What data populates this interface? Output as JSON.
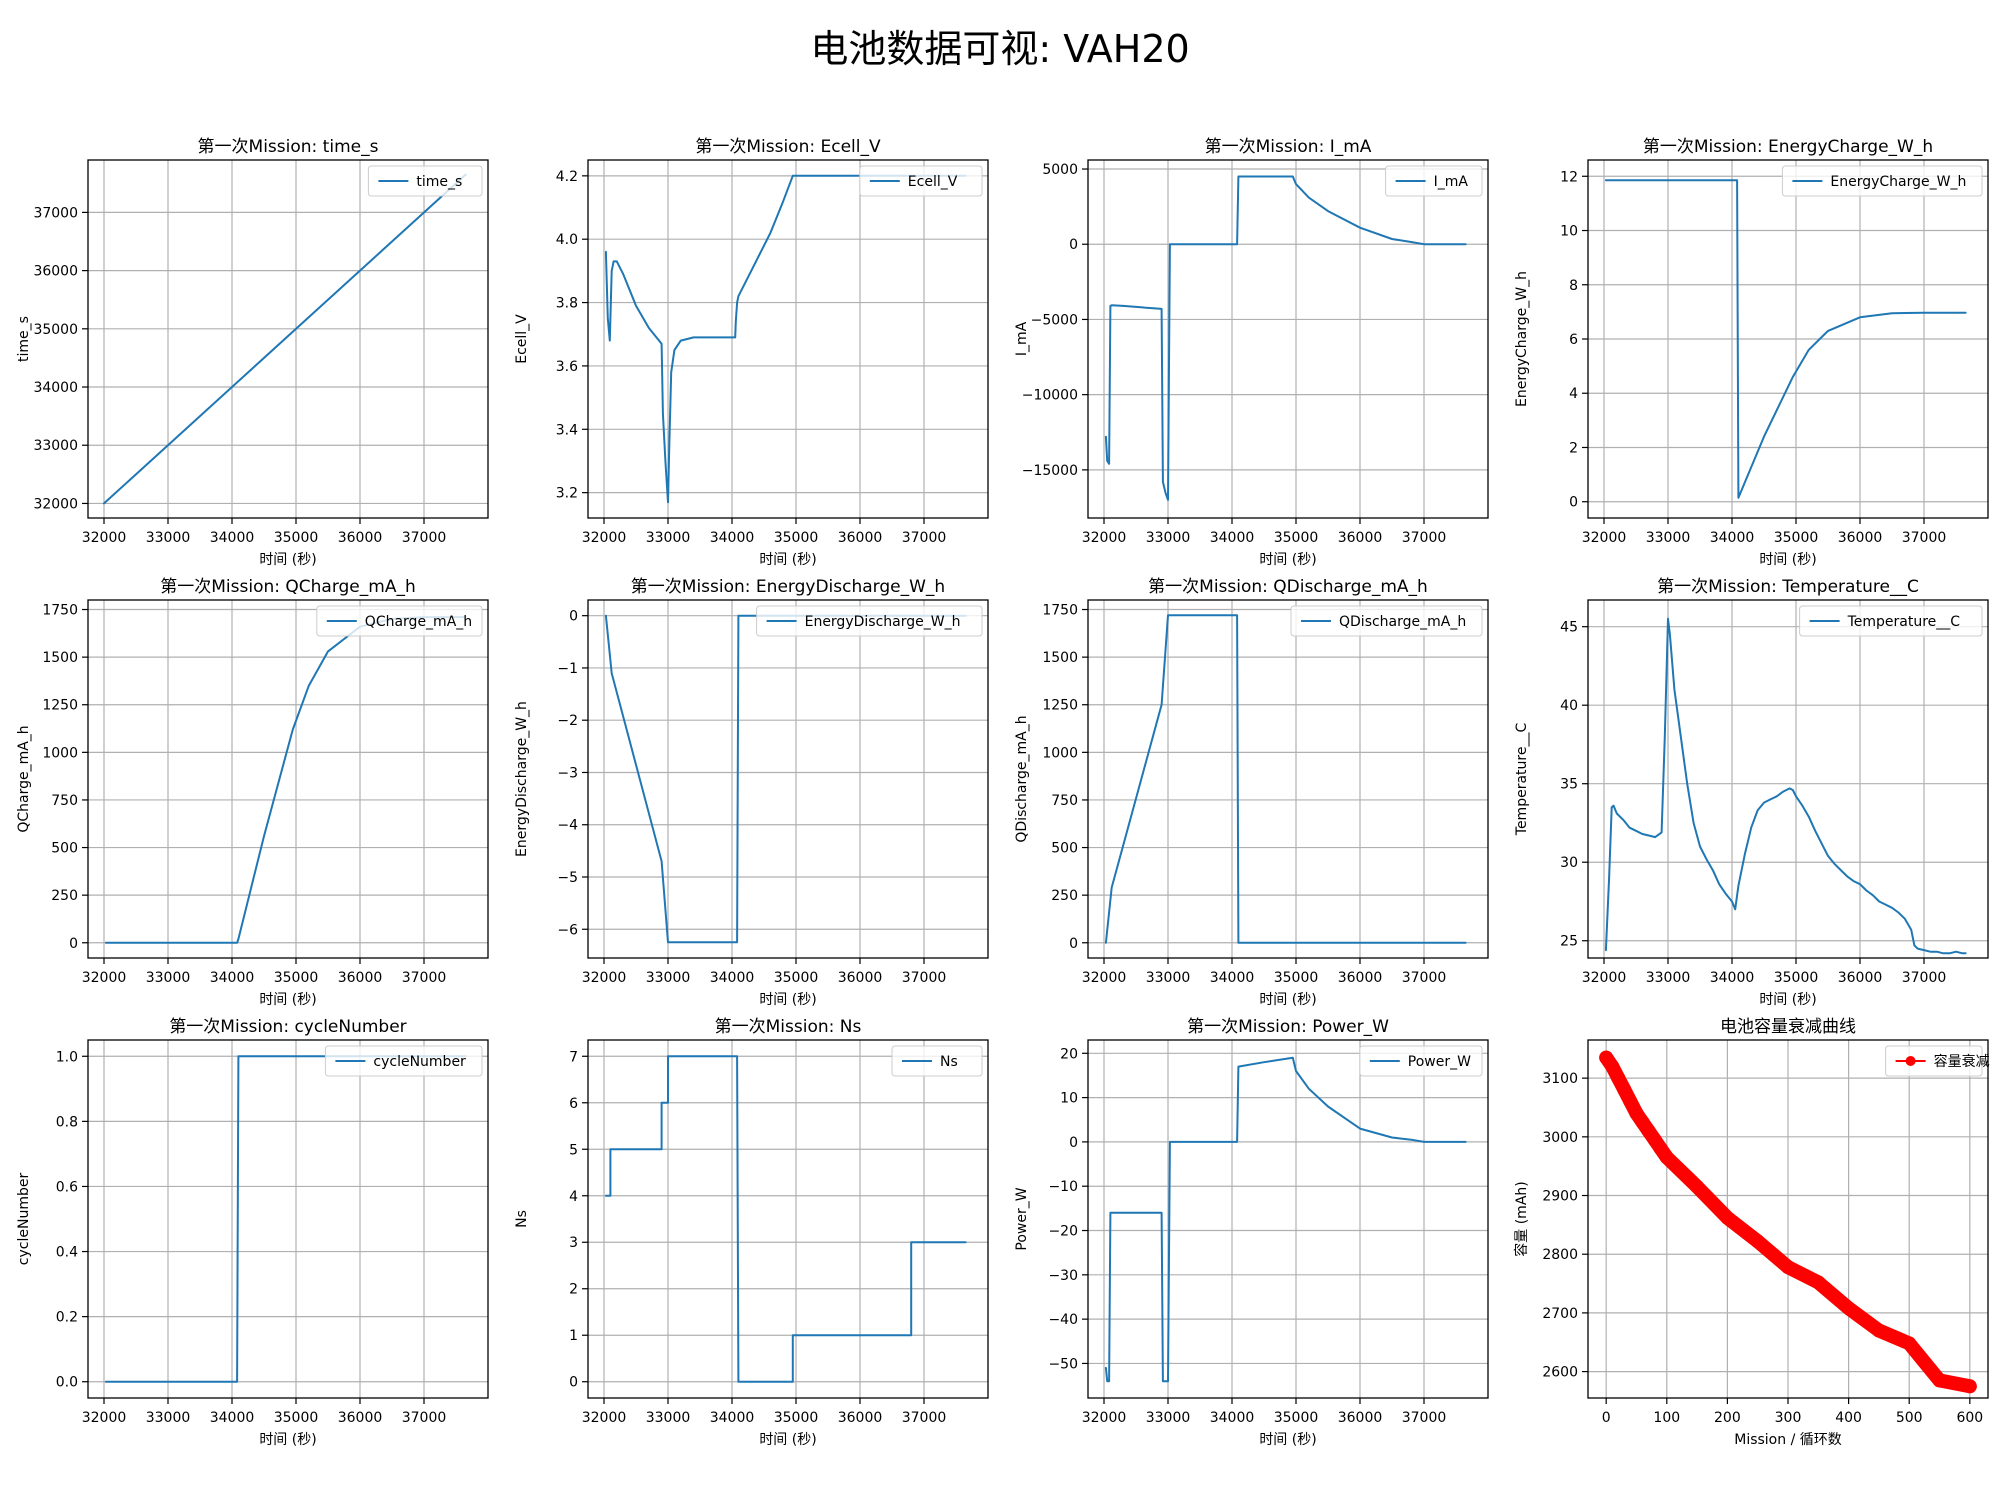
{
  "figure_title": "电池数据可视: VAH20",
  "chart_data": [
    {
      "type": "line",
      "title": "第一次Mission: time_s",
      "xlabel": "时间 (秒)",
      "ylabel": "time_s",
      "xlim": [
        31750,
        38000
      ],
      "ylim": [
        31750,
        37900
      ],
      "xticks": [
        32000,
        33000,
        34000,
        35000,
        36000,
        37000
      ],
      "yticks": [
        32000,
        33000,
        34000,
        35000,
        36000,
        37000
      ],
      "grid": true,
      "legend": "top-right",
      "series": [
        {
          "name": "time_s",
          "x": [
            32000,
            37650
          ],
          "y": [
            32000,
            37650
          ]
        }
      ]
    },
    {
      "type": "line",
      "title": "第一次Mission: Ecell_V",
      "xlabel": "时间 (秒)",
      "ylabel": "Ecell_V",
      "xlim": [
        31750,
        38000
      ],
      "ylim": [
        3.12,
        4.25
      ],
      "xticks": [
        32000,
        33000,
        34000,
        35000,
        36000,
        37000
      ],
      "yticks": [
        3.2,
        3.4,
        3.6,
        3.8,
        4.0,
        4.2
      ],
      "yticklabels": [
        "3.2",
        "3.4",
        "3.6",
        "3.8",
        "4.0",
        "4.2"
      ],
      "grid": true,
      "legend": "top-right",
      "series": [
        {
          "name": "Ecell_V",
          "x": [
            32030,
            32060,
            32090,
            32120,
            32150,
            32200,
            32300,
            32500,
            32700,
            32900,
            32920,
            32960,
            33000,
            33020,
            33050,
            33100,
            33200,
            33400,
            33700,
            34050,
            34060,
            34080,
            34100,
            34300,
            34600,
            34800,
            34950,
            35200,
            35600,
            36000,
            36500,
            37000,
            37650
          ],
          "y": [
            3.96,
            3.75,
            3.68,
            3.9,
            3.93,
            3.93,
            3.89,
            3.79,
            3.72,
            3.67,
            3.45,
            3.3,
            3.17,
            3.35,
            3.58,
            3.65,
            3.68,
            3.69,
            3.69,
            3.69,
            3.74,
            3.8,
            3.82,
            3.9,
            4.02,
            4.12,
            4.2,
            4.2,
            4.2,
            4.2,
            4.2,
            4.2,
            4.2
          ]
        }
      ]
    },
    {
      "type": "line",
      "title": "第一次Mission: I_mA",
      "xlabel": "时间 (秒)",
      "ylabel": "I_mA",
      "xlim": [
        31750,
        38000
      ],
      "ylim": [
        -18200,
        5600
      ],
      "xticks": [
        32000,
        33000,
        34000,
        35000,
        36000,
        37000
      ],
      "yticks": [
        -15000,
        -10000,
        -5000,
        0,
        5000
      ],
      "grid": true,
      "legend": "top-right",
      "series": [
        {
          "name": "I_mA",
          "x": [
            32030,
            32050,
            32080,
            32100,
            32120,
            32300,
            32600,
            32900,
            32920,
            32960,
            33000,
            33030,
            33200,
            33500,
            34000,
            34080,
            34100,
            34500,
            34950,
            35000,
            35200,
            35500,
            36000,
            36500,
            36800,
            37000,
            37650
          ],
          "y": [
            -12800,
            -14400,
            -14600,
            -4100,
            -4050,
            -4100,
            -4200,
            -4300,
            -15800,
            -16500,
            -17000,
            0,
            0,
            0,
            0,
            0,
            4500,
            4500,
            4500,
            4000,
            3100,
            2200,
            1100,
            350,
            150,
            0,
            0
          ]
        }
      ]
    },
    {
      "type": "line",
      "title": "第一次Mission: EnergyCharge_W_h",
      "xlabel": "时间 (秒)",
      "ylabel": "EnergyCharge_W_h",
      "xlim": [
        31750,
        38000
      ],
      "ylim": [
        -0.6,
        12.6
      ],
      "xticks": [
        32000,
        33000,
        34000,
        35000,
        36000,
        37000
      ],
      "yticks": [
        0,
        2,
        4,
        6,
        8,
        10,
        12
      ],
      "grid": true,
      "legend": "top-right",
      "series": [
        {
          "name": "EnergyCharge_W_h",
          "x": [
            32030,
            33000,
            34000,
            34080,
            34100,
            34500,
            34950,
            35200,
            35500,
            36000,
            36500,
            37000,
            37650
          ],
          "y": [
            11.85,
            11.85,
            11.85,
            11.85,
            0.15,
            2.4,
            4.6,
            5.6,
            6.3,
            6.8,
            6.95,
            6.97,
            6.97
          ]
        }
      ]
    },
    {
      "type": "line",
      "title": "第一次Mission: QCharge_mA_h",
      "xlabel": "时间 (秒)",
      "ylabel": "QCharge_mA_h",
      "xlim": [
        31750,
        38000
      ],
      "ylim": [
        -80,
        1800
      ],
      "xticks": [
        32000,
        33000,
        34000,
        35000,
        36000,
        37000
      ],
      "yticks": [
        0,
        250,
        500,
        750,
        1000,
        1250,
        1500,
        1750
      ],
      "grid": true,
      "legend": "top-right",
      "series": [
        {
          "name": "QCharge_mA_h",
          "x": [
            32030,
            33000,
            34000,
            34080,
            34100,
            34500,
            34950,
            35200,
            35500,
            36000,
            36500,
            37000,
            37650
          ],
          "y": [
            0,
            0,
            0,
            0,
            20,
            560,
            1120,
            1350,
            1530,
            1660,
            1700,
            1710,
            1710
          ]
        }
      ]
    },
    {
      "type": "line",
      "title": "第一次Mission: EnergyDischarge_W_h",
      "xlabel": "时间 (秒)",
      "ylabel": "EnergyDischarge_W_h",
      "xlim": [
        31750,
        38000
      ],
      "ylim": [
        -6.55,
        0.3
      ],
      "xticks": [
        32000,
        33000,
        34000,
        35000,
        36000,
        37000
      ],
      "yticks": [
        -6,
        -5,
        -4,
        -3,
        -2,
        -1,
        0
      ],
      "grid": true,
      "legend": "top-right",
      "series": [
        {
          "name": "EnergyDischarge_W_h",
          "x": [
            32030,
            32120,
            32900,
            33000,
            33500,
            34000,
            34080,
            34100,
            34500,
            35000,
            36000,
            37000,
            37650
          ],
          "y": [
            0,
            -1.1,
            -4.7,
            -6.25,
            -6.25,
            -6.25,
            -6.25,
            0,
            0,
            0,
            0,
            0,
            0
          ]
        }
      ]
    },
    {
      "type": "line",
      "title": "第一次Mission: QDischarge_mA_h",
      "xlabel": "时间 (秒)",
      "ylabel": "QDischarge_mA_h",
      "xlim": [
        31750,
        38000
      ],
      "ylim": [
        -80,
        1800
      ],
      "xticks": [
        32000,
        33000,
        34000,
        35000,
        36000,
        37000
      ],
      "yticks": [
        0,
        250,
        500,
        750,
        1000,
        1250,
        1500,
        1750
      ],
      "grid": true,
      "legend": "top-right",
      "series": [
        {
          "name": "QDischarge_mA_h",
          "x": [
            32030,
            32120,
            32900,
            33000,
            33500,
            34000,
            34080,
            34100,
            34500,
            35000,
            36000,
            37000,
            37650
          ],
          "y": [
            0,
            290,
            1250,
            1720,
            1720,
            1720,
            1720,
            0,
            0,
            0,
            0,
            0,
            0
          ]
        }
      ]
    },
    {
      "type": "line",
      "title": "第一次Mission: Temperature__C",
      "xlabel": "时间 (秒)",
      "ylabel": "Temperature__C",
      "xlim": [
        31750,
        38000
      ],
      "ylim": [
        23.9,
        46.7
      ],
      "xticks": [
        32000,
        33000,
        34000,
        35000,
        36000,
        37000
      ],
      "yticks": [
        25,
        30,
        35,
        40,
        45
      ],
      "grid": true,
      "legend": "top-right",
      "series": [
        {
          "name": "Temperature__C",
          "x": [
            32030,
            32080,
            32120,
            32150,
            32200,
            32300,
            32400,
            32500,
            32600,
            32700,
            32800,
            32900,
            32950,
            33000,
            33030,
            33100,
            33200,
            33300,
            33400,
            33500,
            33600,
            33700,
            33800,
            33900,
            34000,
            34050,
            34100,
            34200,
            34300,
            34400,
            34500,
            34600,
            34700,
            34800,
            34900,
            34950,
            35000,
            35100,
            35200,
            35300,
            35400,
            35500,
            35600,
            35700,
            35800,
            35900,
            36000,
            36100,
            36200,
            36300,
            36400,
            36500,
            36600,
            36700,
            36800,
            36850,
            36900,
            37000,
            37100,
            37200,
            37300,
            37400,
            37500,
            37600,
            37650
          ],
          "y": [
            24.4,
            29.0,
            33.5,
            33.6,
            33.1,
            32.7,
            32.2,
            32.0,
            31.8,
            31.7,
            31.6,
            31.9,
            38.0,
            45.5,
            44.5,
            41.0,
            38.0,
            35.0,
            32.5,
            31.0,
            30.2,
            29.5,
            28.6,
            28.0,
            27.5,
            27.0,
            28.5,
            30.5,
            32.2,
            33.3,
            33.8,
            34.0,
            34.2,
            34.5,
            34.7,
            34.6,
            34.2,
            33.6,
            32.9,
            32.0,
            31.2,
            30.4,
            29.9,
            29.5,
            29.1,
            28.8,
            28.6,
            28.2,
            27.9,
            27.5,
            27.3,
            27.1,
            26.8,
            26.4,
            25.7,
            24.7,
            24.5,
            24.4,
            24.3,
            24.3,
            24.2,
            24.2,
            24.3,
            24.2,
            24.2
          ]
        }
      ]
    },
    {
      "type": "line",
      "title": "第一次Mission: cycleNumber",
      "xlabel": "时间 (秒)",
      "ylabel": "cycleNumber",
      "xlim": [
        31750,
        38000
      ],
      "ylim": [
        -0.05,
        1.05
      ],
      "xticks": [
        32000,
        33000,
        34000,
        35000,
        36000,
        37000
      ],
      "yticks": [
        0.0,
        0.2,
        0.4,
        0.6,
        0.8,
        1.0
      ],
      "yticklabels": [
        "0.0",
        "0.2",
        "0.4",
        "0.6",
        "0.8",
        "1.0"
      ],
      "grid": true,
      "legend": "top-right",
      "series": [
        {
          "name": "cycleNumber",
          "x": [
            32030,
            33000,
            34000,
            34080,
            34100,
            35000,
            36000,
            37000,
            37650
          ],
          "y": [
            0,
            0,
            0,
            0,
            1,
            1,
            1,
            1,
            1
          ]
        }
      ]
    },
    {
      "type": "line",
      "title": "第一次Mission: Ns",
      "xlabel": "时间 (秒)",
      "ylabel": "Ns",
      "xlim": [
        31750,
        38000
      ],
      "ylim": [
        -0.35,
        7.35
      ],
      "xticks": [
        32000,
        33000,
        34000,
        35000,
        36000,
        37000
      ],
      "yticks": [
        0,
        1,
        2,
        3,
        4,
        5,
        6,
        7
      ],
      "grid": true,
      "legend": "top-right",
      "series": [
        {
          "name": "Ns",
          "x": [
            32030,
            32100,
            32100,
            32900,
            32900,
            33000,
            33000,
            34080,
            34100,
            34950,
            34950,
            36800,
            36800,
            37650
          ],
          "y": [
            4,
            4,
            5,
            5,
            6,
            6,
            7,
            7,
            0,
            0,
            1,
            1,
            3,
            3
          ]
        }
      ]
    },
    {
      "type": "line",
      "title": "第一次Mission: Power_W",
      "xlabel": "时间 (秒)",
      "ylabel": "Power_W",
      "xlim": [
        31750,
        38000
      ],
      "ylim": [
        -57.8,
        23.0
      ],
      "xticks": [
        32000,
        33000,
        34000,
        35000,
        36000,
        37000
      ],
      "yticks": [
        -50,
        -40,
        -30,
        -20,
        -10,
        0,
        10,
        20
      ],
      "grid": true,
      "legend": "top-right",
      "series": [
        {
          "name": "Power_W",
          "x": [
            32030,
            32050,
            32080,
            32100,
            32120,
            32900,
            32920,
            33000,
            33030,
            33500,
            34000,
            34080,
            34100,
            34500,
            34950,
            35000,
            35200,
            35500,
            36000,
            36500,
            36800,
            37000,
            37650
          ],
          "y": [
            -51,
            -54,
            -54,
            -16,
            -16,
            -16,
            -54,
            -54,
            0,
            0,
            0,
            0,
            17,
            18,
            19,
            16,
            12,
            8,
            3,
            1,
            0.5,
            0,
            0
          ]
        }
      ]
    },
    {
      "type": "line",
      "title": "电池容量衰减曲线",
      "xlabel": "Mission / 循环数",
      "ylabel": "容量 (mAh)",
      "xlim": [
        -30,
        630
      ],
      "ylim": [
        2555,
        3165
      ],
      "xticks": [
        0,
        100,
        200,
        300,
        400,
        500,
        600
      ],
      "yticks": [
        2600,
        2700,
        2800,
        2900,
        3000,
        3100
      ],
      "grid": true,
      "legend": "top-right",
      "series": [
        {
          "name": "容量衰减",
          "x": [
            0,
            10,
            20,
            30,
            40,
            50,
            60,
            70,
            80,
            90,
            100,
            150,
            200,
            250,
            300,
            350,
            400,
            450,
            500,
            550,
            600
          ],
          "y": [
            3135,
            3120,
            3100,
            3080,
            3060,
            3040,
            3025,
            3010,
            2995,
            2980,
            2965,
            2915,
            2862,
            2822,
            2778,
            2752,
            2708,
            2670,
            2648,
            2585,
            2575
          ]
        }
      ]
    }
  ]
}
